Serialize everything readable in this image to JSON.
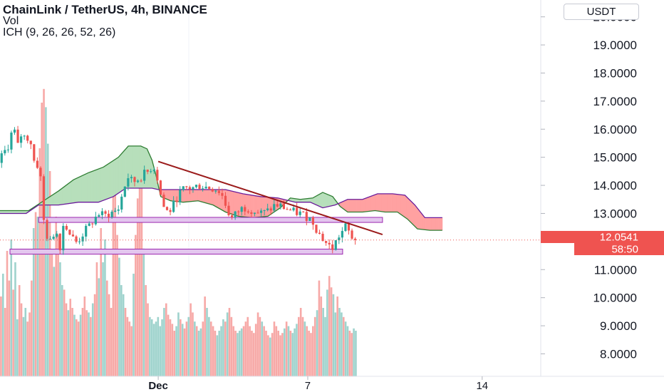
{
  "header": {
    "title": "ChainLink / TetherUS, 4h, BINANCE",
    "volume_label": "Vol",
    "indicator_label": "ICH (9, 26, 26, 52, 26)",
    "currency_button": "USDT"
  },
  "colors": {
    "up": "#26a69a",
    "down": "#ef5350",
    "cloud_bull_fill": "#b7dfbb",
    "cloud_bear_fill": "#ffa1a1",
    "span_a": "#2e7d32",
    "span_b": "#6a1b9a",
    "trendline": "#9b1b1b",
    "zone_fill": "#e3c6ee",
    "zone_border": "#9c27b0",
    "price_tag": "#ef5350",
    "axis_text": "#131722"
  },
  "chart_data": {
    "type": "candlestick",
    "symbol": "ChainLink / TetherUS",
    "timeframe": "4h",
    "exchange": "BINANCE",
    "y_axis": {
      "ticks": [
        "8.0000",
        "9.0000",
        "10.0000",
        "11.0000",
        "12.0000",
        "13.0000",
        "14.0000",
        "15.0000",
        "16.0000",
        "17.0000",
        "18.0000",
        "19.0000",
        "20.0000"
      ],
      "range": [
        7.2,
        20.6
      ]
    },
    "x_axis": {
      "ticks": [
        {
          "label": "Dec",
          "day": 1,
          "bold": true
        },
        {
          "label": "7",
          "day": 7,
          "bold": false
        },
        {
          "label": "14",
          "day": 14,
          "bold": false
        }
      ],
      "day_range": [
        -5.35,
        16.35
      ]
    },
    "last_price": "12.0541",
    "countdown": "58:50",
    "price_path": [
      [
        -5.35,
        14.8
      ],
      [
        -5.1,
        15.2
      ],
      [
        -4.9,
        15.5
      ],
      [
        -4.75,
        16.2
      ],
      [
        -4.6,
        15.3
      ],
      [
        -4.4,
        15.9
      ],
      [
        -4.25,
        15.6
      ],
      [
        -4.1,
        15.8
      ],
      [
        -3.95,
        15.0
      ],
      [
        -3.85,
        14.6
      ],
      [
        -3.75,
        14.8
      ],
      [
        -3.65,
        14.2
      ],
      [
        -3.58,
        13.0
      ],
      [
        -3.5,
        12.6
      ],
      [
        -3.4,
        12.2
      ],
      [
        -3.3,
        12.0
      ],
      [
        -3.2,
        11.9
      ],
      [
        -3.1,
        12.5
      ],
      [
        -3.0,
        12.3
      ],
      [
        -2.9,
        11.7
      ],
      [
        -2.8,
        12.3
      ],
      [
        -2.7,
        12.8
      ],
      [
        -2.6,
        12.5
      ],
      [
        -2.5,
        12.3
      ],
      [
        -2.35,
        12.1
      ],
      [
        -2.2,
        11.95
      ],
      [
        -2.05,
        12.15
      ],
      [
        -1.9,
        12.35
      ],
      [
        -1.7,
        12.55
      ],
      [
        -1.5,
        12.8
      ],
      [
        -1.3,
        13.0
      ],
      [
        -1.1,
        12.9
      ],
      [
        -0.9,
        13.0
      ],
      [
        -0.7,
        13.05
      ],
      [
        -0.5,
        13.2
      ],
      [
        -0.35,
        13.8
      ],
      [
        -0.15,
        14.3
      ],
      [
        0.05,
        14.1
      ],
      [
        0.3,
        14.25
      ],
      [
        0.5,
        14.4
      ],
      [
        0.7,
        14.5
      ],
      [
        0.85,
        14.75
      ],
      [
        1.0,
        14.4
      ],
      [
        1.15,
        13.7
      ],
      [
        1.3,
        13.2
      ],
      [
        1.45,
        13.05
      ],
      [
        1.6,
        13.15
      ],
      [
        1.8,
        13.55
      ],
      [
        2.0,
        13.8
      ],
      [
        2.2,
        13.9
      ],
      [
        2.45,
        13.9
      ],
      [
        2.7,
        14.0
      ],
      [
        2.95,
        13.95
      ],
      [
        3.2,
        13.9
      ],
      [
        3.45,
        13.85
      ],
      [
        3.65,
        13.6
      ],
      [
        3.85,
        13.1
      ],
      [
        4.0,
        12.8
      ],
      [
        4.15,
        12.95
      ],
      [
        4.35,
        13.15
      ],
      [
        4.55,
        13.2
      ],
      [
        4.8,
        13.15
      ],
      [
        5.0,
        13.05
      ],
      [
        5.25,
        13.0
      ],
      [
        5.5,
        13.1
      ],
      [
        5.75,
        13.3
      ],
      [
        6.0,
        13.25
      ],
      [
        6.25,
        13.15
      ],
      [
        6.5,
        13.05
      ],
      [
        6.75,
        13.0
      ],
      [
        7.0,
        12.9
      ],
      [
        7.25,
        12.75
      ],
      [
        7.5,
        12.3
      ],
      [
        7.75,
        12.0
      ],
      [
        7.9,
        11.85
      ],
      [
        8.05,
        11.75
      ],
      [
        8.2,
        12.0
      ],
      [
        8.35,
        12.25
      ],
      [
        8.5,
        12.4
      ],
      [
        8.6,
        12.55
      ],
      [
        8.7,
        12.35
      ],
      [
        8.8,
        12.2
      ],
      [
        8.9,
        12.08
      ],
      [
        8.97,
        12.0541
      ]
    ],
    "ichimoku": {
      "span_a": [
        [
          -5.35,
          13.1
        ],
        [
          -4.2,
          13.1
        ],
        [
          -3.6,
          13.45
        ],
        [
          -3.0,
          13.8
        ],
        [
          -2.4,
          14.2
        ],
        [
          -1.8,
          14.45
        ],
        [
          -1.2,
          14.65
        ],
        [
          -0.6,
          15.0
        ],
        [
          -0.2,
          15.4
        ],
        [
          0.3,
          15.4
        ],
        [
          0.55,
          15.3
        ],
        [
          0.75,
          14.9
        ],
        [
          0.9,
          14.4
        ],
        [
          1.1,
          13.6
        ],
        [
          1.5,
          13.45
        ],
        [
          2.0,
          13.4
        ],
        [
          2.6,
          13.45
        ],
        [
          3.2,
          13.3
        ],
        [
          3.7,
          13.05
        ],
        [
          4.2,
          12.9
        ],
        [
          4.8,
          12.85
        ],
        [
          5.4,
          12.9
        ],
        [
          5.9,
          13.2
        ],
        [
          6.3,
          13.55
        ],
        [
          6.7,
          13.5
        ],
        [
          7.2,
          13.55
        ],
        [
          7.6,
          13.75
        ],
        [
          8.0,
          13.6
        ],
        [
          8.3,
          13.25
        ],
        [
          8.6,
          13.05
        ],
        [
          9.2,
          13.05
        ],
        [
          9.7,
          13.1
        ],
        [
          10.1,
          13.05
        ],
        [
          10.6,
          13.05
        ],
        [
          11.0,
          12.8
        ],
        [
          11.4,
          12.45
        ],
        [
          11.9,
          12.4
        ],
        [
          12.4,
          12.4
        ]
      ],
      "span_b": [
        [
          -5.35,
          13.0
        ],
        [
          -4.3,
          13.0
        ],
        [
          -3.8,
          13.3
        ],
        [
          -3.0,
          13.3
        ],
        [
          -2.2,
          13.4
        ],
        [
          -1.4,
          13.4
        ],
        [
          -0.8,
          13.6
        ],
        [
          -0.3,
          13.9
        ],
        [
          0.3,
          13.9
        ],
        [
          0.75,
          13.9
        ],
        [
          1.0,
          13.85
        ],
        [
          1.5,
          13.85
        ],
        [
          2.2,
          13.85
        ],
        [
          3.0,
          13.85
        ],
        [
          3.7,
          13.85
        ],
        [
          4.4,
          13.7
        ],
        [
          5.1,
          13.6
        ],
        [
          5.8,
          13.55
        ],
        [
          6.5,
          13.4
        ],
        [
          7.1,
          13.4
        ],
        [
          7.6,
          13.2
        ],
        [
          8.1,
          13.3
        ],
        [
          8.6,
          13.5
        ],
        [
          9.2,
          13.5
        ],
        [
          9.8,
          13.7
        ],
        [
          10.4,
          13.7
        ],
        [
          10.9,
          13.65
        ],
        [
          11.3,
          13.3
        ],
        [
          11.7,
          12.85
        ],
        [
          12.0,
          12.85
        ],
        [
          12.4,
          12.85
        ]
      ]
    },
    "trendline": {
      "start": [
        1.0,
        14.85
      ],
      "end": [
        10.0,
        12.25
      ]
    },
    "support_zones": [
      {
        "day_start": -3.8,
        "day_end": 10.0,
        "bottom": 12.68,
        "top": 12.86
      },
      {
        "day_start": -4.95,
        "day_end": 8.4,
        "bottom": 11.55,
        "top": 11.73
      }
    ],
    "volume": {
      "axis_max": 16.5,
      "bars": [
        3.5,
        4.5,
        3.0,
        5.5,
        4.2,
        6.0,
        3.8,
        5.0,
        2.5,
        4.0,
        3.2,
        2.6,
        3.0,
        2.4,
        2.8,
        4.2,
        6.5,
        7.2,
        7.0,
        10.0,
        12.0,
        12.6,
        11.8,
        10.2,
        9.0,
        5.5,
        4.8,
        7.0,
        6.2,
        5.0,
        4.0,
        3.8,
        3.2,
        2.9,
        3.4,
        3.0,
        2.7,
        2.5,
        2.4,
        2.7,
        3.0,
        3.5,
        2.9,
        2.8,
        2.6,
        3.2,
        3.6,
        5.0,
        4.3,
        6.5,
        5.0,
        6.0,
        4.2,
        3.6,
        3.0,
        8.5,
        8.8,
        6.2,
        5.2,
        4.0,
        3.6,
        3.0,
        2.6,
        2.4,
        2.2,
        4.5,
        6.2,
        7.8,
        9.8,
        8.4,
        5.6,
        4.0,
        3.2,
        2.6,
        2.5,
        2.3,
        2.4,
        2.6,
        2.2,
        2.5,
        3.0,
        3.2,
        2.7,
        2.5,
        2.3,
        2.0,
        2.2,
        2.8,
        2.5,
        2.3,
        2.1,
        2.4,
        2.6,
        3.2,
        2.8,
        2.4,
        2.2,
        2.0,
        2.1,
        2.4,
        3.5,
        3.0,
        2.6,
        2.4,
        2.2,
        2.0,
        1.8,
        2.0,
        2.2,
        2.5,
        2.4,
        2.8,
        3.0,
        2.6,
        2.2,
        2.0,
        1.9,
        2.0,
        2.1,
        2.2,
        2.4,
        2.6,
        2.2,
        2.0,
        1.9,
        2.3,
        2.8,
        2.6,
        2.4,
        2.2,
        2.0,
        1.8,
        1.7,
        1.9,
        2.4,
        2.2,
        2.0,
        1.8,
        1.9,
        2.1,
        2.4,
        2.2,
        2.0,
        1.9,
        2.1,
        2.3,
        2.6,
        3.0,
        2.6,
        2.4,
        2.2,
        2.0,
        1.9,
        2.2,
        2.6,
        2.9,
        4.2,
        3.5,
        3.0,
        2.6,
        3.8,
        4.4,
        3.9,
        3.6,
        2.8,
        3.5,
        3.0,
        2.8,
        2.6,
        2.4,
        2.2,
        2.0,
        1.9,
        2.1,
        2.0
      ]
    }
  }
}
